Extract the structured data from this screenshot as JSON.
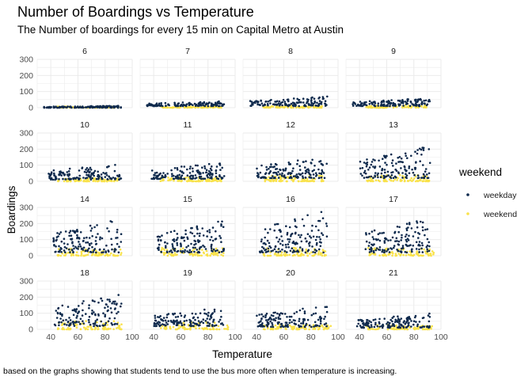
{
  "chart_data": {
    "type": "scatter",
    "title": "Number of Boardings vs Temperature",
    "subtitle": "The Number of boardings for every 15 min on Capital Metro at Austin",
    "xlabel": "Temperature",
    "ylabel": "Boardings",
    "caption": "based on the graphs showing that students tend to use the bus more often when temperature is increasing.",
    "xlim": [
      30,
      100
    ],
    "ylim": [
      0,
      300
    ],
    "x_ticks": [
      40,
      60,
      80,
      100
    ],
    "y_ticks": [
      0,
      100,
      200,
      300
    ],
    "grid": true,
    "legend": {
      "title": "weekend",
      "placement": "right",
      "entries": [
        {
          "label": "weekday",
          "color": "#0f2a4d"
        },
        {
          "label": "weekend",
          "color": "#f9e24a"
        }
      ]
    },
    "facet_by": "hour",
    "facets": [
      {
        "label": "6",
        "weekday": {
          "x": [
            35,
            92
          ],
          "y": [
            0,
            12
          ]
        },
        "weekend": {
          "x": [
            45,
            90
          ],
          "y": [
            0,
            8
          ]
        }
      },
      {
        "label": "7",
        "weekday": {
          "x": [
            35,
            92
          ],
          "y": [
            10,
            40
          ]
        },
        "weekend": {
          "x": [
            45,
            90
          ],
          "y": [
            0,
            10
          ]
        }
      },
      {
        "label": "8",
        "weekday": {
          "x": [
            35,
            92
          ],
          "y": [
            10,
            70
          ]
        },
        "weekend": {
          "x": [
            45,
            90
          ],
          "y": [
            0,
            12
          ]
        }
      },
      {
        "label": "9",
        "weekday": {
          "x": [
            35,
            92
          ],
          "y": [
            10,
            60
          ]
        },
        "weekend": {
          "x": [
            45,
            90
          ],
          "y": [
            0,
            15
          ]
        }
      },
      {
        "label": "10",
        "weekday": {
          "x": [
            38,
            92
          ],
          "y": [
            10,
            110
          ]
        },
        "weekend": {
          "x": [
            45,
            90
          ],
          "y": [
            0,
            20
          ]
        }
      },
      {
        "label": "11",
        "weekday": {
          "x": [
            38,
            92
          ],
          "y": [
            15,
            120
          ]
        },
        "weekend": {
          "x": [
            45,
            90
          ],
          "y": [
            0,
            25
          ]
        }
      },
      {
        "label": "12",
        "weekday": {
          "x": [
            40,
            92
          ],
          "y": [
            20,
            160
          ]
        },
        "weekend": {
          "x": [
            45,
            90
          ],
          "y": [
            0,
            35
          ]
        }
      },
      {
        "label": "13",
        "weekday": {
          "x": [
            40,
            92
          ],
          "y": [
            20,
            220
          ]
        },
        "weekend": {
          "x": [
            45,
            92
          ],
          "y": [
            0,
            40
          ]
        }
      },
      {
        "label": "14",
        "weekday": {
          "x": [
            42,
            92
          ],
          "y": [
            20,
            230
          ]
        },
        "weekend": {
          "x": [
            45,
            92
          ],
          "y": [
            0,
            45
          ]
        }
      },
      {
        "label": "15",
        "weekday": {
          "x": [
            42,
            92
          ],
          "y": [
            20,
            220
          ]
        },
        "weekend": {
          "x": [
            45,
            92
          ],
          "y": [
            0,
            50
          ]
        }
      },
      {
        "label": "16",
        "weekday": {
          "x": [
            42,
            92
          ],
          "y": [
            20,
            290
          ]
        },
        "weekend": {
          "x": [
            45,
            92
          ],
          "y": [
            0,
            50
          ]
        }
      },
      {
        "label": "17",
        "weekday": {
          "x": [
            42,
            92
          ],
          "y": [
            20,
            240
          ]
        },
        "weekend": {
          "x": [
            45,
            95
          ],
          "y": [
            0,
            50
          ]
        }
      },
      {
        "label": "18",
        "weekday": {
          "x": [
            42,
            92
          ],
          "y": [
            20,
            230
          ]
        },
        "weekend": {
          "x": [
            45,
            95
          ],
          "y": [
            0,
            55
          ]
        }
      },
      {
        "label": "19",
        "weekday": {
          "x": [
            40,
            92
          ],
          "y": [
            20,
            140
          ]
        },
        "weekend": {
          "x": [
            45,
            95
          ],
          "y": [
            0,
            45
          ]
        }
      },
      {
        "label": "20",
        "weekday": {
          "x": [
            40,
            92
          ],
          "y": [
            15,
            150
          ]
        },
        "weekend": {
          "x": [
            45,
            95
          ],
          "y": [
            0,
            30
          ]
        }
      },
      {
        "label": "21",
        "weekday": {
          "x": [
            38,
            92
          ],
          "y": [
            10,
            100
          ]
        },
        "weekend": {
          "x": [
            45,
            95
          ],
          "y": [
            0,
            30
          ]
        }
      }
    ]
  }
}
